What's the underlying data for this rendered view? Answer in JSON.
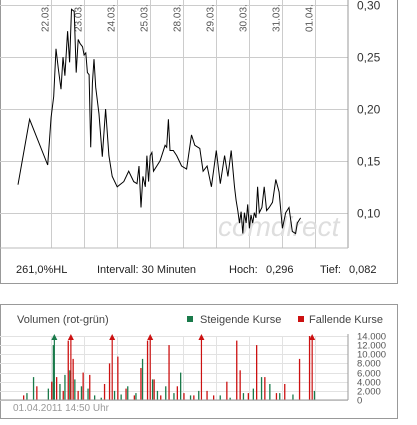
{
  "watermark": "comdirect",
  "price_info": {
    "change": "261,0%HL",
    "interval": "Intervall: 30 Minuten",
    "high_label": "Hoch:",
    "high_value": "0,296",
    "low_label": "Tief:",
    "low_value": "0,082"
  },
  "volume_panel": {
    "title": "Volumen (rot-grün)",
    "legend_rising": "Steigende Kurse",
    "legend_falling": "Fallende Kurse",
    "timestamp": "01.04.2011 14:50 Uhr"
  },
  "colors": {
    "line": "#000000",
    "rising": "#1a7a4a",
    "falling": "#cc1111",
    "grid": "#cccccc",
    "frame": "#999999",
    "axis_text": "#555555"
  },
  "chart_data": [
    {
      "type": "line",
      "title": "",
      "xlabel": "",
      "ylabel": "",
      "x_tick_labels": [
        "22.03.",
        "23.03.",
        "24.03.",
        "25.03.",
        "28.03.",
        "29.03.",
        "30.03.",
        "31.03.",
        "01.04."
      ],
      "y_tick_labels": [
        "0,30",
        "0,25",
        "0,20",
        "0,15",
        "0,10"
      ],
      "y_ticks": [
        0.3,
        0.25,
        0.2,
        0.15,
        0.1
      ],
      "ylim": [
        0.066,
        0.305
      ],
      "xlim": [
        0,
        9.5
      ],
      "grid": true,
      "series": [
        {
          "x": [
            0.0,
            0.35,
            0.9,
            1.0,
            1.08,
            1.15,
            1.22,
            1.3,
            1.36,
            1.42,
            1.5,
            1.56,
            1.62,
            1.7,
            1.76,
            1.82,
            1.88,
            1.95,
            2.0,
            2.05,
            2.1,
            2.15,
            2.2,
            2.25,
            2.3,
            2.35,
            2.45,
            2.55,
            2.65,
            2.75,
            2.85,
            3.0,
            3.2,
            3.35,
            3.5,
            3.6,
            3.66,
            3.72,
            3.78,
            3.85,
            3.9,
            3.95,
            4.0,
            4.05,
            4.1,
            4.2,
            4.3,
            4.45,
            4.5,
            4.55,
            4.6,
            4.7,
            4.8,
            4.95,
            5.1,
            5.25,
            5.35,
            5.5,
            5.6,
            5.72,
            5.85,
            6.0,
            6.12,
            6.25,
            6.35,
            6.45,
            6.55,
            6.6,
            6.65,
            6.7,
            6.75,
            6.8,
            6.85,
            6.9,
            6.95,
            7.0,
            7.05,
            7.1,
            7.15,
            7.2,
            7.25,
            7.3,
            7.38,
            7.45,
            7.52,
            7.6,
            7.7,
            7.8,
            7.9,
            8.0,
            8.1,
            8.2,
            8.3,
            8.4,
            8.45,
            8.55
          ],
          "y": [
            0.127,
            0.19,
            0.146,
            0.192,
            0.212,
            0.258,
            0.239,
            0.219,
            0.25,
            0.232,
            0.275,
            0.245,
            0.296,
            0.294,
            0.235,
            0.267,
            0.263,
            0.26,
            0.252,
            0.254,
            0.235,
            0.233,
            0.163,
            0.225,
            0.248,
            0.221,
            0.195,
            0.154,
            0.2,
            0.155,
            0.135,
            0.125,
            0.13,
            0.14,
            0.13,
            0.128,
            0.145,
            0.105,
            0.135,
            0.125,
            0.155,
            0.13,
            0.155,
            0.158,
            0.14,
            0.145,
            0.15,
            0.165,
            0.163,
            0.19,
            0.16,
            0.16,
            0.155,
            0.145,
            0.142,
            0.175,
            0.165,
            0.162,
            0.14,
            0.145,
            0.125,
            0.16,
            0.128,
            0.155,
            0.135,
            0.16,
            0.125,
            0.112,
            0.102,
            0.09,
            0.101,
            0.08,
            0.1,
            0.09,
            0.108,
            0.085,
            0.098,
            0.09,
            0.1,
            0.095,
            0.125,
            0.1,
            0.105,
            0.125,
            0.102,
            0.105,
            0.11,
            0.132,
            0.12,
            0.085,
            0.1,
            0.105,
            0.082,
            0.08,
            0.09,
            0.095
          ],
          "low_label": "0,082",
          "high_label": "0,296"
        }
      ]
    },
    {
      "type": "bar",
      "title": "Volumen (rot-grün)",
      "y_tick_labels": [
        "14.000",
        "12.000",
        "10.000",
        "8.000",
        "6.000",
        "4.000",
        "2.000",
        "0"
      ],
      "y_ticks": [
        14000,
        12000,
        10000,
        8000,
        6000,
        4000,
        2000,
        0
      ],
      "ylim": [
        0,
        14000
      ],
      "xlim": [
        0,
        9.5
      ],
      "grid": true,
      "overflow_markers": [
        {
          "x": 1.1,
          "direction": "rising"
        },
        {
          "x": 1.6,
          "direction": "falling"
        },
        {
          "x": 2.85,
          "direction": "falling"
        },
        {
          "x": 4.0,
          "direction": "falling"
        },
        {
          "x": 5.55,
          "direction": "falling"
        },
        {
          "x": 8.9,
          "direction": "falling"
        }
      ],
      "series": [
        {
          "name": "Steigende Kurse",
          "color": "#1a7a4a",
          "x": [
            0.25,
            0.45,
            0.9,
            1.05,
            1.25,
            1.4,
            1.55,
            1.7,
            1.9,
            2.1,
            2.3,
            2.5,
            2.9,
            3.1,
            3.3,
            3.55,
            3.75,
            4.05,
            4.2,
            4.45,
            4.7,
            4.9,
            5.2,
            5.45,
            6.1,
            6.4,
            6.8,
            7.1,
            7.35,
            7.6,
            7.9,
            8.3,
            8.95
          ],
          "values": [
            1500,
            5000,
            2500,
            12000,
            3500,
            5500,
            6500,
            4500,
            3000,
            2500,
            1000,
            500,
            2000,
            1200,
            3000,
            1500,
            9000,
            4500,
            2000,
            3000,
            1500,
            6000,
            1000,
            2000,
            1000,
            500,
            1500,
            2500,
            5000,
            3500,
            1500,
            1200,
            2000
          ]
        },
        {
          "name": "Fallende Kurse",
          "color": "#cc1111",
          "x": [
            0.15,
            0.55,
            1.0,
            1.15,
            1.35,
            1.5,
            1.65,
            1.8,
            1.95,
            2.15,
            2.6,
            2.75,
            3.0,
            3.25,
            3.5,
            3.7,
            3.9,
            4.1,
            4.3,
            4.55,
            4.8,
            5.0,
            5.3,
            5.7,
            5.9,
            6.3,
            6.6,
            6.7,
            6.95,
            7.2,
            7.45,
            7.8,
            8.05,
            8.5,
            8.8
          ],
          "values": [
            1000,
            3000,
            4000,
            5000,
            2000,
            13000,
            9000,
            2000,
            6000,
            5500,
            3500,
            8000,
            9500,
            2500,
            1000,
            7000,
            13000,
            4500,
            1000,
            12000,
            3000,
            1500,
            1000,
            2000,
            1000,
            4000,
            13000,
            6500,
            1500,
            12000,
            5000,
            1500,
            3500,
            9000,
            14000
          ]
        }
      ]
    }
  ]
}
